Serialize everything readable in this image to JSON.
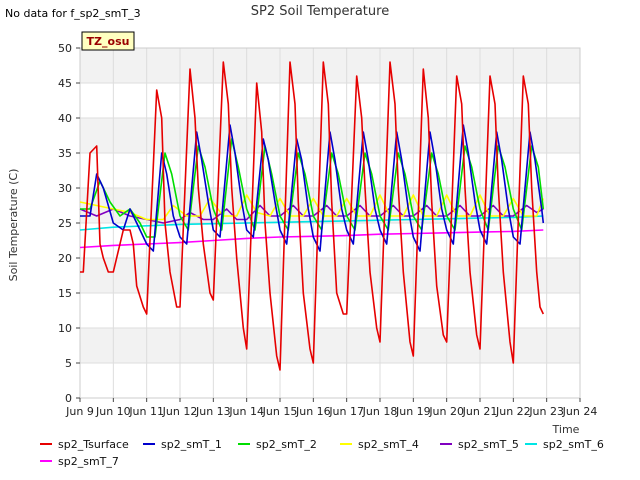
{
  "no_data_note": "No data for f_sp2_smT_3",
  "site_badge": "TZ_osu",
  "chart_data": {
    "type": "line",
    "title": "SP2 Soil Temperature",
    "xlabel": "Time",
    "ylabel": "Soil Temperature (C)",
    "xlim": [
      9,
      24
    ],
    "ylim": [
      0,
      50
    ],
    "x_ticks": [
      9,
      10,
      11,
      12,
      13,
      14,
      15,
      16,
      17,
      18,
      19,
      20,
      21,
      22,
      23,
      24
    ],
    "x_tick_labels": [
      "Jun 9",
      "Jun 10",
      "Jun 11",
      "Jun 12",
      "Jun 13",
      "Jun 14",
      "Jun 15",
      "Jun 16",
      "Jun 17",
      "Jun 18",
      "Jun 19",
      "Jun 20",
      "Jun 21",
      "Jun 22",
      "Jun 23",
      "Jun 24"
    ],
    "y_ticks": [
      0,
      5,
      10,
      15,
      20,
      25,
      30,
      35,
      40,
      45,
      50
    ],
    "y_tick_labels": [
      "0",
      "5",
      "10",
      "15",
      "20",
      "25",
      "30",
      "35",
      "40",
      "45",
      "50"
    ],
    "grid": true,
    "legend_position": "bottom",
    "series": [
      {
        "name": "sp2_Tsurface",
        "color": "#e60000",
        "x": [
          9.0,
          9.1,
          9.3,
          9.5,
          9.6,
          9.7,
          9.85,
          10.0,
          10.3,
          10.5,
          10.6,
          10.7,
          10.9,
          11.0,
          11.3,
          11.45,
          11.55,
          11.7,
          11.9,
          12.0,
          12.3,
          12.45,
          12.55,
          12.7,
          12.9,
          13.0,
          13.3,
          13.45,
          13.55,
          13.7,
          13.9,
          14.0,
          14.3,
          14.45,
          14.55,
          14.7,
          14.9,
          15.0,
          15.3,
          15.45,
          15.55,
          15.7,
          15.9,
          16.0,
          16.3,
          16.45,
          16.55,
          16.7,
          16.9,
          17.0,
          17.3,
          17.45,
          17.55,
          17.7,
          17.9,
          18.0,
          18.3,
          18.45,
          18.55,
          18.7,
          18.9,
          19.0,
          19.3,
          19.45,
          19.55,
          19.7,
          19.9,
          20.0,
          20.3,
          20.45,
          20.55,
          20.7,
          20.9,
          21.0,
          21.3,
          21.45,
          21.55,
          21.7,
          21.9,
          22.0,
          22.3,
          22.45,
          22.55,
          22.7,
          22.8,
          22.9
        ],
        "y": [
          18,
          18,
          35,
          36,
          22,
          20,
          18,
          18,
          24,
          24,
          22,
          16,
          13,
          12,
          44,
          40,
          25,
          18,
          13,
          13,
          47,
          40,
          30,
          22,
          15,
          14,
          48,
          42,
          30,
          20,
          10,
          7,
          45,
          38,
          25,
          15,
          6,
          4,
          48,
          42,
          28,
          15,
          7,
          5,
          48,
          42,
          28,
          15,
          12,
          12,
          46,
          40,
          30,
          18,
          10,
          8,
          48,
          42,
          30,
          18,
          8,
          6,
          47,
          40,
          28,
          16,
          9,
          8,
          46,
          42,
          30,
          18,
          9,
          7,
          46,
          42,
          30,
          18,
          8,
          5,
          46,
          42,
          30,
          18,
          13,
          12
        ]
      },
      {
        "name": "sp2_smT_1",
        "color": "#0000cc",
        "x": [
          9.0,
          9.3,
          9.5,
          9.7,
          10.0,
          10.3,
          10.5,
          10.7,
          11.0,
          11.2,
          11.45,
          11.6,
          11.8,
          12.0,
          12.2,
          12.5,
          12.65,
          12.85,
          13.0,
          13.2,
          13.5,
          13.65,
          13.85,
          14.0,
          14.2,
          14.5,
          14.65,
          14.85,
          15.0,
          15.2,
          15.5,
          15.65,
          15.85,
          16.0,
          16.2,
          16.5,
          16.65,
          16.85,
          17.0,
          17.2,
          17.5,
          17.65,
          17.85,
          18.0,
          18.2,
          18.5,
          18.65,
          18.85,
          19.0,
          19.2,
          19.5,
          19.65,
          19.85,
          20.0,
          20.2,
          20.5,
          20.65,
          20.85,
          21.0,
          21.2,
          21.5,
          21.65,
          21.85,
          22.0,
          22.2,
          22.5,
          22.65,
          22.85,
          22.9
        ],
        "y": [
          26,
          26,
          32,
          30,
          25,
          24,
          27,
          25,
          22,
          21,
          35,
          32,
          26,
          23,
          22,
          38,
          34,
          28,
          24,
          23,
          39,
          35,
          28,
          24,
          23,
          37,
          34,
          28,
          24,
          22,
          37,
          34,
          27,
          23,
          21,
          38,
          34,
          27,
          24,
          22,
          38,
          34,
          27,
          24,
          22,
          38,
          34,
          27,
          23,
          21,
          38,
          34,
          27,
          24,
          22,
          39,
          35,
          28,
          24,
          22,
          38,
          34,
          27,
          23,
          22,
          38,
          34,
          27,
          25
        ]
      },
      {
        "name": "sp2_smT_2",
        "color": "#00dd00",
        "x": [
          9.0,
          9.3,
          9.6,
          9.9,
          10.2,
          10.5,
          10.8,
          11.0,
          11.25,
          11.55,
          11.75,
          12.0,
          12.25,
          12.55,
          12.75,
          13.0,
          13.25,
          13.55,
          13.75,
          14.0,
          14.25,
          14.55,
          14.75,
          15.0,
          15.25,
          15.55,
          15.75,
          16.0,
          16.25,
          16.55,
          16.75,
          17.0,
          17.25,
          17.55,
          17.75,
          18.0,
          18.25,
          18.55,
          18.75,
          19.0,
          19.25,
          19.55,
          19.75,
          20.0,
          20.25,
          20.55,
          20.75,
          21.0,
          21.25,
          21.55,
          21.75,
          22.0,
          22.25,
          22.55,
          22.75,
          22.9
        ],
        "y": [
          27,
          27,
          31,
          28,
          26,
          27,
          25,
          23,
          23,
          35,
          32,
          26,
          24,
          36,
          33,
          27,
          24,
          37,
          33,
          27,
          24,
          36,
          32,
          26,
          24,
          35,
          32,
          26,
          24,
          35,
          32,
          26,
          24,
          35,
          32,
          26,
          24,
          35,
          32,
          26,
          24,
          35,
          32,
          26,
          24,
          36,
          33,
          27,
          24,
          36,
          33,
          27,
          24,
          36,
          33,
          27
        ]
      },
      {
        "name": "sp2_smT_4",
        "color": "#ffff00",
        "x": [
          9.0,
          9.5,
          10.0,
          10.5,
          11.0,
          11.5,
          11.8,
          12.2,
          12.6,
          12.9,
          13.3,
          13.7,
          14.0,
          14.3,
          14.7,
          15.0,
          15.3,
          15.7,
          16.0,
          16.3,
          16.7,
          17.0,
          17.3,
          17.7,
          18.0,
          18.3,
          18.7,
          19.0,
          19.3,
          19.7,
          20.0,
          20.3,
          20.7,
          21.0,
          21.3,
          21.7,
          22.0,
          22.3,
          22.7,
          22.9
        ],
        "y": [
          28,
          27.5,
          27,
          26.5,
          25.5,
          25.5,
          27.5,
          26,
          26,
          28.5,
          26,
          26,
          29,
          26.5,
          26,
          28.5,
          26,
          26,
          28.5,
          26,
          26,
          28.5,
          26,
          26,
          29,
          26,
          26,
          29,
          26,
          26,
          29,
          26,
          26,
          29,
          26,
          26,
          28.5,
          26,
          26,
          28.5
        ]
      },
      {
        "name": "sp2_smT_5",
        "color": "#8000c0",
        "x": [
          9.0,
          9.5,
          10.0,
          10.5,
          11.0,
          11.5,
          12.0,
          12.3,
          12.7,
          13.0,
          13.4,
          13.7,
          14.0,
          14.4,
          14.7,
          15.0,
          15.4,
          15.7,
          16.0,
          16.4,
          16.7,
          17.0,
          17.4,
          17.7,
          18.0,
          18.4,
          18.7,
          19.0,
          19.4,
          19.7,
          20.0,
          20.4,
          20.7,
          21.0,
          21.4,
          21.7,
          22.0,
          22.4,
          22.7,
          22.9
        ],
        "y": [
          27,
          26,
          27,
          26,
          25.5,
          25,
          25.5,
          26.5,
          25.5,
          25.5,
          27,
          25.5,
          25.5,
          27.5,
          26,
          26,
          27.5,
          26,
          26,
          27.5,
          26,
          26,
          27.5,
          26,
          26,
          27.5,
          26,
          26,
          27.5,
          26,
          26,
          27.5,
          26,
          26,
          27.5,
          26,
          26,
          27.5,
          26.5,
          27
        ]
      },
      {
        "name": "sp2_smT_6",
        "color": "#00e5e5",
        "x": [
          9.0,
          10.0,
          11.0,
          12.0,
          13.0,
          14.0,
          15.0,
          16.0,
          17.0,
          18.0,
          19.0,
          20.0,
          21.0,
          22.0,
          22.9
        ],
        "y": [
          24,
          24.4,
          24.6,
          24.8,
          24.9,
          25.0,
          25.1,
          25.2,
          25.3,
          25.4,
          25.5,
          25.6,
          25.7,
          25.8,
          26.0
        ]
      },
      {
        "name": "sp2_smT_7",
        "color": "#ff00ff",
        "x": [
          9.0,
          10.0,
          11.0,
          12.0,
          13.0,
          14.0,
          15.0,
          16.0,
          17.0,
          18.0,
          19.0,
          20.0,
          21.0,
          22.0,
          22.9
        ],
        "y": [
          21.5,
          21.8,
          22.0,
          22.2,
          22.5,
          22.8,
          23.0,
          23.1,
          23.2,
          23.4,
          23.5,
          23.6,
          23.7,
          23.8,
          24.0
        ]
      }
    ]
  }
}
